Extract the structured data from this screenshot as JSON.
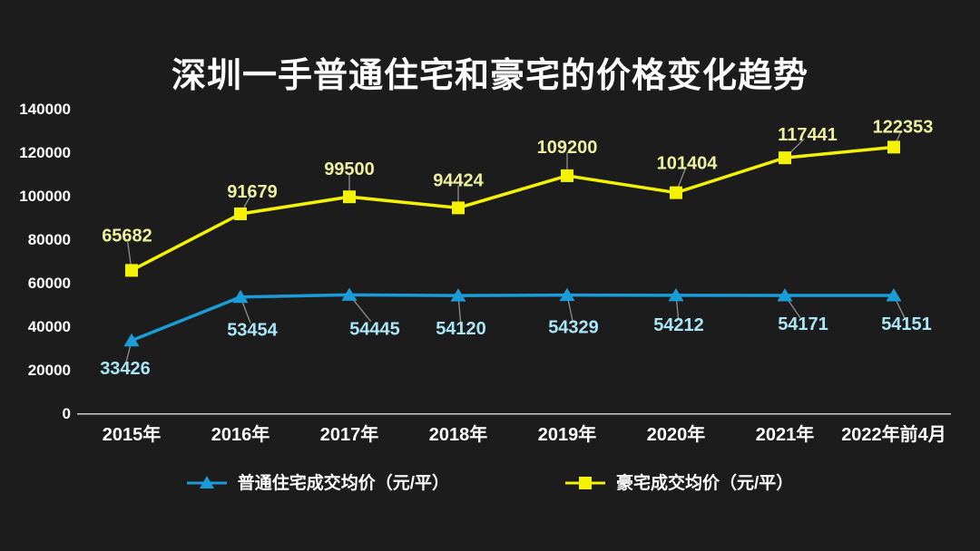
{
  "chart_data": {
    "type": "line",
    "title": "深圳一手普通住宅和豪宅的价格变化趋势",
    "categories": [
      "2015年",
      "2016年",
      "2017年",
      "2018年",
      "2019年",
      "2020年",
      "2021年",
      "2022年前4月"
    ],
    "series": [
      {
        "name": "普通住宅成交均价（元/平）",
        "values": [
          33426,
          53454,
          54445,
          54120,
          54329,
          54212,
          54171,
          54151
        ],
        "marker": "triangle",
        "color": "#1B9CD8",
        "label_color": "#A9E6F8"
      },
      {
        "name": "豪宅成交均价（元/平）",
        "values": [
          65682,
          91679,
          99500,
          94424,
          109200,
          101404,
          117441,
          122353
        ],
        "marker": "square",
        "color": "#F3F303",
        "label_color": "#EEF0A0"
      }
    ],
    "ylim": [
      0,
      140000
    ],
    "yticks": [
      0,
      20000,
      40000,
      60000,
      80000,
      100000,
      120000,
      140000
    ],
    "grid": false,
    "legend_position": "bottom",
    "data_labels": true
  },
  "colors": {
    "background": "#1C1C1C",
    "title_text": "#FFFFFF",
    "axis_text": "#FFFFFF",
    "axis_line": "#D0D0D0",
    "leader_line": "#8F8F8F"
  }
}
